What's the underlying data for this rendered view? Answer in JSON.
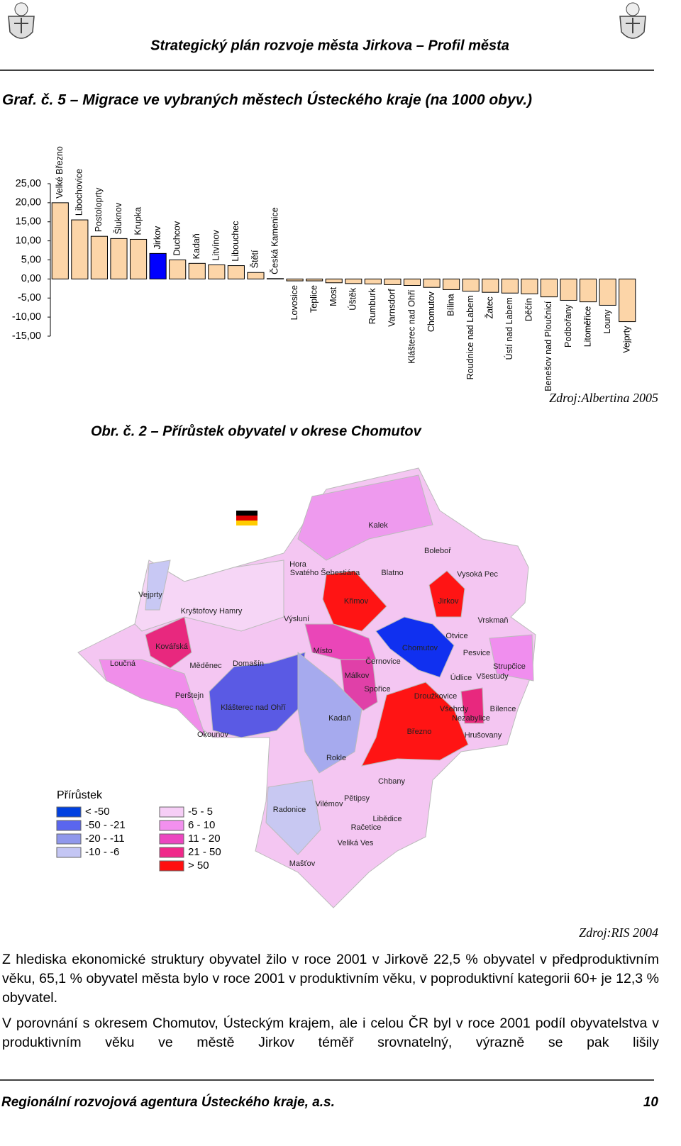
{
  "header": {
    "title": "Strategický plán rozvoje města Jirkova – Profil města"
  },
  "chart_data": {
    "type": "bar",
    "title": "Graf. č. 5 – Migrace ve vybraných městech Ústeckého kraje (na 1000 obyv.)",
    "categories": [
      "Velké Březno",
      "Libochovice",
      "Postoloprty",
      "Šluknov",
      "Krupka",
      "Jirkov",
      "Duchcov",
      "Kadaň",
      "Litvínov",
      "Libouchec",
      "Štětí",
      "Česká Kamenice",
      "Lovosice",
      "Teplice",
      "Most",
      "Úštěk",
      "Rumburk",
      "Varnsdorf",
      "Klášterec nad Ohří",
      "Chomutov",
      "Bílina",
      "Roudnice nad Labem",
      "Žatec",
      "Ústí nad Labem",
      "Děčín",
      "Benešov nad Ploučnicí",
      "Podbořany",
      "Litoměřice",
      "Louny",
      "Vejprty"
    ],
    "values": [
      20.0,
      15.5,
      11.2,
      10.6,
      10.4,
      6.7,
      5.0,
      4.1,
      3.7,
      3.5,
      1.7,
      0.1,
      -0.5,
      -0.5,
      -1.0,
      -1.2,
      -1.3,
      -1.5,
      -1.7,
      -2.2,
      -2.8,
      -3.2,
      -3.5,
      -3.7,
      -3.9,
      -4.7,
      -5.6,
      -6.0,
      -6.9,
      -11.2
    ],
    "colors": [
      "#fcd5a8",
      "#fcd5a8",
      "#fcd5a8",
      "#fcd5a8",
      "#fcd5a8",
      "#0000ff",
      "#fcd5a8",
      "#fcd5a8",
      "#fcd5a8",
      "#fcd5a8",
      "#fcd5a8",
      "#fcd5a8",
      "#fcd5a8",
      "#fcd5a8",
      "#fcd5a8",
      "#fcd5a8",
      "#fcd5a8",
      "#fcd5a8",
      "#fcd5a8",
      "#fcd5a8",
      "#fcd5a8",
      "#fcd5a8",
      "#fcd5a8",
      "#fcd5a8",
      "#fcd5a8",
      "#fcd5a8",
      "#fcd5a8",
      "#fcd5a8",
      "#fcd5a8",
      "#fcd5a8"
    ],
    "ylim": [
      -15,
      25
    ],
    "yticks": [
      {
        "value": -15,
        "label": "-15,00"
      },
      {
        "value": -10,
        "label": "-10,00"
      },
      {
        "value": -5,
        "label": "-5,00"
      },
      {
        "value": 0,
        "label": "0,00"
      },
      {
        "value": 5,
        "label": "5,00"
      },
      {
        "value": 10,
        "label": "10,00"
      },
      {
        "value": 15,
        "label": "15,00"
      },
      {
        "value": 20,
        "label": "20,00"
      },
      {
        "value": 25,
        "label": "25,00"
      }
    ],
    "grid": false,
    "source": "Zdroj:Albertina 2005"
  },
  "map": {
    "title": "Obr. č. 2 – Přírůstek obyvatel v okrese Chomutov",
    "places": [
      "Kalek",
      "Boleboř",
      "Hora",
      "Svatého Šebestiána",
      "Blatno",
      "Vysoká Pec",
      "Vejprty",
      "Kryštofovy Hamry",
      "Křimov",
      "Jirkov",
      "Výsluní",
      "Vrskmaň",
      "Kovářská",
      "Místo",
      "Chomutov",
      "Otvice",
      "Pesvice",
      "Loučná",
      "Měděnec",
      "Domašín",
      "Černovice",
      "Strupčice",
      "Málkov",
      "Údlice",
      "Všestudy",
      "Spořice",
      "Perštejn",
      "Droužkovice",
      "Klášterec nad Ohří",
      "Všehrdy",
      "Bílence",
      "Kadaň",
      "Nezabylice",
      "Březno",
      "Okounov",
      "Hrušovany",
      "Rokle",
      "Chbany",
      "Pětipsy",
      "Radonice",
      "Vilémov",
      "Libědice",
      "Račetice",
      "Veliká Ves",
      "Mašťov"
    ],
    "legend": {
      "title": "Přírůstek",
      "items": [
        {
          "label": "< -50",
          "color": "#0040e0"
        },
        {
          "label": "-50 - -21",
          "color": "#5a66ee"
        },
        {
          "label": "-20 - -11",
          "color": "#9098ec"
        },
        {
          "label": "-10 - -6",
          "color": "#c4c6f4"
        },
        {
          "label": "-5 - 5",
          "color": "#f6cef6"
        },
        {
          "label": "6 - 10",
          "color": "#f290ee"
        },
        {
          "label": "11 - 20",
          "color": "#ec46c0"
        },
        {
          "label": "21 - 50",
          "color": "#f0288a"
        },
        {
          "label": "> 50",
          "color": "#ff1010"
        }
      ]
    },
    "source": "Zdroj:RIS 2004"
  },
  "paragraphs": [
    "Z hlediska ekonomické struktury obyvatel žilo v roce 2001 v Jirkově 22,5 % obyvatel v předproduktivním věku, 65,1 % obyvatel města bylo v roce 2001 v produktivním věku, v poproduktivní kategorii 60+ je 12,3 % obyvatel.",
    "V porovnání s okresem Chomutov, Ústeckým krajem, ale i celou ČR byl v roce 2001 podíl obyvatelstva v produktivním věku ve městě Jirkov téměř srovnatelný, výrazně se pak lišily"
  ],
  "footer": {
    "left": "Regionální rozvojová agentura Ústeckého kraje, a.s.",
    "page": "10"
  }
}
